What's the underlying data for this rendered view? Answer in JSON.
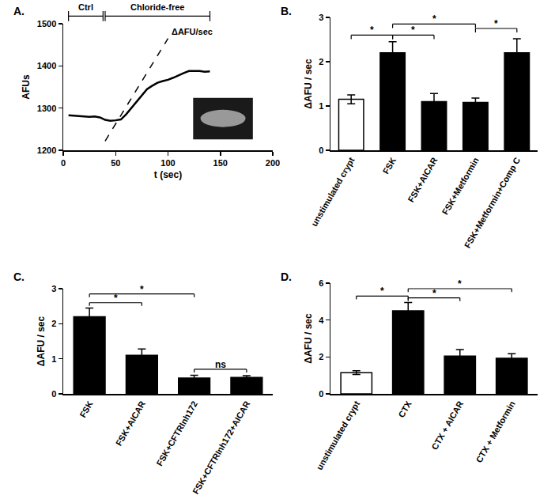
{
  "chart_data": [
    {
      "panel": "A.",
      "type": "line",
      "x_label": "t (sec)",
      "y_label": "AFUs",
      "xlim": [
        0,
        200
      ],
      "xticks": [
        0,
        50,
        100,
        150,
        200
      ],
      "ylim": [
        1200,
        1500
      ],
      "yticks": [
        1200,
        1300,
        1400,
        1500
      ],
      "series": [
        {
          "color": "#000000",
          "line_style": "solid",
          "x": [
            5,
            10,
            20,
            25,
            30,
            35,
            40,
            45,
            50,
            55,
            60,
            65,
            70,
            75,
            80,
            85,
            90,
            95,
            100,
            105,
            110,
            115,
            120,
            125,
            130,
            135,
            140
          ],
          "values": [
            1283,
            1282,
            1281,
            1279,
            1280,
            1278,
            1272,
            1270,
            1271,
            1273,
            1285,
            1300,
            1315,
            1330,
            1345,
            1353,
            1360,
            1364,
            1367,
            1372,
            1378,
            1383,
            1388,
            1388,
            1388,
            1386,
            1387
          ]
        },
        {
          "color": "#000000",
          "line_style": "dashed",
          "x": [
            40,
            100
          ],
          "values": [
            1222,
            1465
          ]
        }
      ],
      "annotations": [
        {
          "text": "ΔAFU/sec",
          "x": 102,
          "y": 1482
        }
      ],
      "periods": [
        {
          "text": "Ctrl",
          "x0": 5,
          "x1": 38
        },
        {
          "text": "Chloride-free",
          "x0": 40,
          "x1": 140
        }
      ]
    },
    {
      "panel": "B.",
      "type": "bar",
      "y_label": "ΔAFU / sec",
      "categories": [
        "unstimulated crypt",
        "FSK",
        "FSK+AICAR",
        "FSK+Metformin",
        "FSK+Metformin+Comp C"
      ],
      "values": [
        1.15,
        2.2,
        1.1,
        1.08,
        2.2
      ],
      "errors": [
        0.1,
        0.25,
        0.18,
        0.1,
        0.32
      ],
      "colors": [
        "#ffffff",
        "#000000",
        "#000000",
        "#000000",
        "#000000"
      ],
      "ylim": [
        0,
        3
      ],
      "yticks": [
        0,
        1,
        2,
        3
      ],
      "significance": [
        {
          "from": 0,
          "to": 1,
          "y": 2.6,
          "text": "*"
        },
        {
          "from": 1,
          "to": 2,
          "y": 2.6,
          "text": "*"
        },
        {
          "from": 1,
          "to": 3,
          "y": 2.85,
          "text": "*"
        },
        {
          "from": 3,
          "to": 4,
          "y": 2.75,
          "text": "*"
        }
      ]
    },
    {
      "panel": "C.",
      "type": "bar",
      "y_label": "ΔAFU / sec",
      "categories": [
        "FSK",
        "FSK+AICAR",
        "FSK+CFTRInh172",
        "FSK+CFTRInh172+AICAR"
      ],
      "values": [
        2.2,
        1.1,
        0.45,
        0.47
      ],
      "errors": [
        0.25,
        0.18,
        0.08,
        0.05
      ],
      "colors": [
        "#000000",
        "#000000",
        "#000000",
        "#000000"
      ],
      "ylim": [
        0,
        3
      ],
      "yticks": [
        0,
        1,
        2,
        3
      ],
      "significance": [
        {
          "from": 0,
          "to": 1,
          "y": 2.6,
          "text": "*"
        },
        {
          "from": 0,
          "to": 2,
          "y": 2.85,
          "text": "*"
        },
        {
          "from": 2,
          "to": 3,
          "y": 0.7,
          "text": "ns"
        }
      ]
    },
    {
      "panel": "D.",
      "type": "bar",
      "y_label": "ΔAFU / sec",
      "categories": [
        "unstimulated crypt",
        "CTX",
        "CTX + AICAR",
        "CTX + Metformin"
      ],
      "values": [
        1.15,
        4.5,
        2.05,
        1.93
      ],
      "errors": [
        0.1,
        0.45,
        0.35,
        0.25
      ],
      "colors": [
        "#ffffff",
        "#000000",
        "#000000",
        "#000000"
      ],
      "ylim": [
        0,
        6
      ],
      "yticks": [
        0,
        2,
        4,
        6
      ],
      "significance": [
        {
          "from": 0,
          "to": 1,
          "y": 5.3,
          "text": "*"
        },
        {
          "from": 1,
          "to": 2,
          "y": 5.2,
          "text": "*"
        },
        {
          "from": 1,
          "to": 3,
          "y": 5.7,
          "text": "*"
        }
      ]
    }
  ]
}
